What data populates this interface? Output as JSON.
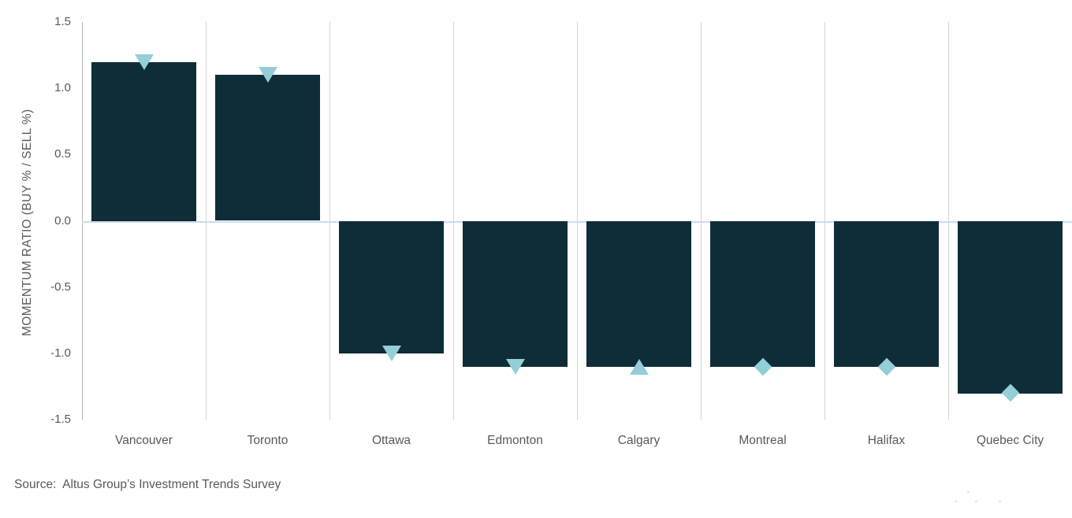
{
  "chart_data": {
    "type": "bar",
    "title": "",
    "categories": [
      "Vancouver",
      "Toronto",
      "Ottawa",
      "Edmonton",
      "Calgary",
      "Montreal",
      "Halifax",
      "Quebec City"
    ],
    "values": [
      1.2,
      1.1,
      -1.0,
      -1.1,
      -1.1,
      -1.1,
      -1.1,
      -1.3
    ],
    "markers": [
      "triangle-down",
      "triangle-down",
      "triangle-down",
      "triangle-down",
      "triangle-up",
      "diamond",
      "diamond",
      "diamond"
    ],
    "xlabel": "",
    "ylabel": "MOMENTUM RATIO (BUY % / SELL %)",
    "ytick_labels": [
      "1.5",
      "1.0",
      "0.5",
      "0.0",
      "-0.5",
      "-1.0",
      "-1.5"
    ],
    "ylim": [
      -1.5,
      1.5
    ],
    "grid": "vertical category separators, pale zero baseline",
    "legend": "none",
    "colors": {
      "bar": "#0e2d38",
      "marker": "#93ced9",
      "zero_line": "#c9dfee",
      "grid_line": "#d4d4d4",
      "axis_line": "#b5b5b5",
      "text": "#595959"
    }
  },
  "source": {
    "label": "Source:  Altus Group’s Investment Trends Survey"
  }
}
